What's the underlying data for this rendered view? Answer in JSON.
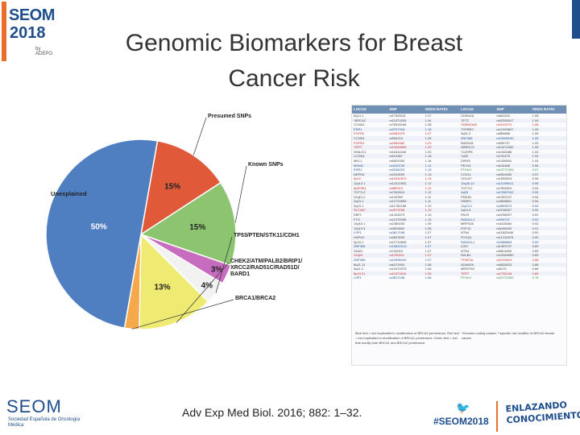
{
  "header": {
    "logo_line1": "SEOM",
    "logo_line2": "2018",
    "logo_tag": "by ADEPO",
    "title_line1": "Genomic Biomarkers for Breast",
    "title_line2": "Cancer Risk"
  },
  "chart_data": {
    "type": "pie",
    "slices": [
      {
        "label": "Presumed SNPs",
        "value": 15,
        "display": "15%",
        "color": "#e05a3a"
      },
      {
        "label": "Known SNPs",
        "value": 15,
        "display": "15%",
        "color": "#8cc470"
      },
      {
        "label": "",
        "value": 3,
        "display": "3%",
        "color": "#c86cc0"
      },
      {
        "label": "TP53/PTEN/STK11/CDH1",
        "value": 4,
        "display": "4%",
        "color": "#f2f2f2"
      },
      {
        "label": "CHEK2/ATM/PALB2/BRIP1/ XRCC2/RAD51C/RAD51D/ BARD1",
        "value": 13,
        "display": "13%",
        "color": "#eeea72"
      },
      {
        "label": "BRCA1/BRCA2",
        "value": 0,
        "display": "",
        "color": "#f5a94a"
      },
      {
        "label": "Unexplained",
        "value": 50,
        "display": "50%",
        "color": "#4f7fc0"
      }
    ]
  },
  "table": {
    "headers": [
      "LOCUS",
      "SNP",
      "ODDS RATIO",
      "LOCUS",
      "SNP",
      "ODDS RATIO"
    ],
    "rows": [
      [
        "6q14.1",
        "rs17529111",
        "1.07",
        "CDKN2A",
        "rs661204",
        "1.06"
      ],
      [
        "*BRCA2",
        "rs11571833",
        "1.44",
        "TET2",
        "rs62355517",
        "1.06"
      ],
      [
        "CCND1",
        "rs75915166",
        "1.38",
        "CDKN2A/B",
        "rs1011970",
        "1.06"
      ],
      [
        "ESR1",
        "rs3757318",
        "1.16",
        "TGFBR2",
        "rs12493607",
        "1.06"
      ],
      [
        "FGFR2",
        "rs2981579",
        "1.27",
        "9q31.2",
        "rs865686",
        "1.05"
      ],
      [
        "CCND1",
        "rs554219",
        "1.25",
        "ZNF365",
        "rs10995190",
        "1.05"
      ],
      [
        "FGFR2",
        "rs2981582",
        "1.23",
        "RAD51B",
        "rs999737",
        "1.05"
      ],
      [
        "TERT",
        "rs10069690",
        "1.20",
        "ARRDC3",
        "rs10474352",
        "1.05"
      ],
      [
        "DNAJC1",
        "rs11814448",
        "1.20",
        "*CASP8",
        "rs1045485",
        "1.04"
      ],
      [
        "CCDN1",
        "rs614367",
        "1.18",
        "7q35",
        "rs720475",
        "1.04"
      ],
      [
        "MKL1",
        "rs6001930",
        "1.16",
        "DIRS9",
        "rs1436904",
        "1.04"
      ],
      [
        "MDM4",
        "rs4245739",
        "1.14",
        "PEX14",
        "rs616488",
        "0.98"
      ],
      [
        "ESR1",
        "rs2046210",
        "1.13",
        "PTHLH",
        "rs10771399",
        "0.97"
      ],
      [
        "NRFK6",
        "rs2943009",
        "1.13",
        "COX11",
        "rs6504950",
        "0.97"
      ],
      [
        "5p12",
        "rs10941679",
        "1.13",
        "CDCA7",
        "rs1550623",
        "0.96"
      ],
      [
        "12p13.1",
        "rs12422552",
        "1.12",
        "10q26.12",
        "rs11199914",
        "0.95"
      ],
      [
        "MAP3K1",
        "rs889312",
        "1.12",
        "TCF7L2",
        "rs7904519",
        "0.94"
      ],
      [
        "TCF7L2",
        "rs7904519",
        "1.12",
        "2q35",
        "rs13387042",
        "0.94"
      ],
      [
        "22q12.2",
        "rs132390",
        "1.11",
        "PDE4D",
        "rs1353747",
        "0.94"
      ],
      [
        "2q24.1",
        "rs12710696",
        "1.11",
        "SSBP4",
        "rs4808801",
        "0.94"
      ],
      [
        "9q24.1",
        "rs11780156",
        "1.10",
        "11q13.1",
        "rs3903072",
        "0.92"
      ],
      [
        "SLC4A7",
        "rs4973768",
        "1.10",
        "1q24.3",
        "rs2236007",
        "0.92"
      ],
      [
        "EBF1",
        "rs1432679",
        "1.10",
        "PAX9",
        "rs2236007",
        "0.92"
      ],
      [
        "FTO",
        "rs11075995",
        "1.10",
        "RAD51L1",
        "rs999737",
        "0.92"
      ],
      [
        "10p15.1",
        "rs2380205",
        "1.09",
        "MRPS30",
        "rs4415084",
        "0.92"
      ],
      [
        "11q13.3",
        "rs3803662",
        "1.08",
        "FGF10",
        "rs6446000",
        "0.91"
      ],
      [
        "LSP1",
        "rs3817198",
        "1.07",
        "NTN4",
        "rs11820646",
        "0.90"
      ],
      [
        "HNF4G",
        "rs2823093",
        "1.07",
        "FOXQ1",
        "rs11242675",
        "0.90"
      ],
      [
        "2p24.1",
        "rs12710696",
        "1.07",
        "RAD51L1",
        "rs2588809",
        "0.90"
      ],
      [
        "ZNF365",
        "rs10822013",
        "1.07",
        "LDIS",
        "rs1353747",
        "0.89"
      ],
      [
        "ZMIZ1",
        "rs704010",
        "1.07",
        "NTN4",
        "rs6814500",
        "0.89"
      ],
      [
        "12q24",
        "rs1292011",
        "1.07",
        "RALB1",
        "rs10069690",
        "0.89"
      ],
      [
        "ZNF365",
        "rs10995190",
        "1.07",
        "**FAF2A",
        "rs3749913",
        "0.88"
      ],
      [
        "8q21.11",
        "rs6472903",
        "1.06",
        "ADAM29",
        "rs6828523",
        "0.88"
      ],
      [
        "5q11.2",
        "rs10472076",
        "1.06",
        "MERIT40",
        "rs8170",
        "0.86"
      ],
      [
        "6p24.21",
        "rs11571815",
        "1.06",
        "TERT",
        "rs2736108",
        "0.85"
      ],
      [
        "LSP1",
        "rs3817198",
        "1.06",
        "PTHLH",
        "rs10771399",
        "0.78"
      ]
    ],
    "note_left": "Blue text = loci implicated in modification of BRCA2 penetrance; Red text = loci implicated in modification of BRCA1 penetrance; Green text = loci that modify both BRCA1 and BRCA2 penetrance.",
    "note_right": "*Denotes coding variant; **specific risk modifier of BRCA2 breast cancer"
  },
  "footer": {
    "citation": "Adv Exp Med Biol. 2016; 882: 1–32.",
    "org_name": "SEOM",
    "org_subtitle": "Sociedad Española de Oncología Médica",
    "hashtag": "#SEOM2018",
    "twitter_icon": "twitter-bird-icon",
    "slogan_line1": "ENLAZANDO",
    "slogan_line2": "CONOCIMIENTO"
  }
}
